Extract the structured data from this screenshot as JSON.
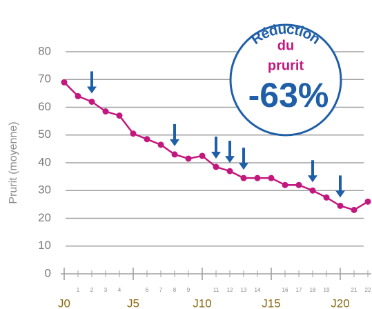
{
  "chart_data": {
    "type": "line",
    "y_label": "Prurit (moyenne)",
    "x": [
      0,
      1,
      2,
      3,
      4,
      5,
      6,
      7,
      8,
      9,
      10,
      11,
      12,
      13,
      14,
      15,
      16,
      17,
      18,
      19,
      20,
      21,
      22
    ],
    "series": [
      {
        "name": "Prurit",
        "color": "#c2187e",
        "values": [
          69,
          64,
          62,
          58.5,
          57,
          50.5,
          48.5,
          46.5,
          43,
          41.5,
          42.5,
          38.5,
          37,
          34.5,
          34.5,
          34.5,
          32,
          32,
          30,
          27.5,
          24.5,
          23,
          26
        ]
      }
    ],
    "arrows_x": [
      2,
      8,
      11,
      12,
      13,
      18,
      20
    ],
    "arrow_color": "#1f5fa8",
    "xlim": [
      -0.25,
      22.25
    ],
    "ylim": [
      0,
      80
    ],
    "yticks": [
      0,
      10,
      20,
      30,
      40,
      50,
      60,
      70,
      80
    ],
    "xticks": [
      {
        "value": 0,
        "label": "J0"
      },
      1,
      2,
      3,
      4,
      {
        "value": 5,
        "label": "J5"
      },
      6,
      7,
      8,
      9,
      {
        "value": 10,
        "label": "J10"
      },
      11,
      12,
      13,
      14,
      {
        "value": 15,
        "label": "J15"
      },
      16,
      17,
      18,
      19,
      {
        "value": 20,
        "label": "J20"
      },
      21,
      22
    ],
    "grid": true,
    "badge": {
      "title": "Réduction",
      "line1": "du",
      "line2": "prurit",
      "value": "-63%"
    }
  }
}
